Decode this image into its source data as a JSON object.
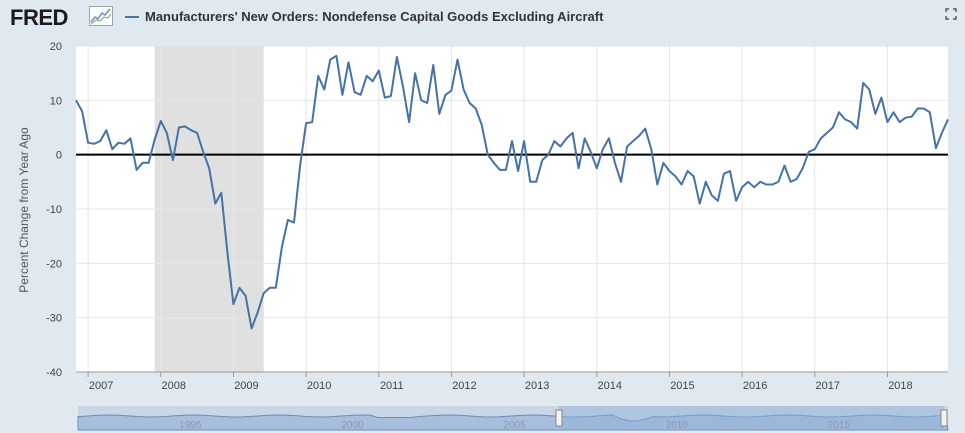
{
  "header": {
    "logo_text": "FRED",
    "title": "Manufacturers' New Orders: Nondefense Capital Goods Excluding Aircraft"
  },
  "colors": {
    "series": "#4572a7",
    "recession": "#e0e0e0",
    "zero_line": "#000000",
    "navigator_fill": "#a7bfdc"
  },
  "navigator": {
    "labels": [
      "1995",
      "2000",
      "2005",
      "2010",
      "2015"
    ]
  },
  "chart_data": {
    "type": "line",
    "ylabel": "Percent Change from Year Ago",
    "ylim": [
      -40,
      20
    ],
    "yticks": [
      20,
      10,
      0,
      -10,
      -20,
      -30,
      -40
    ],
    "x_labels": [
      "2007",
      "2008",
      "2009",
      "2010",
      "2011",
      "2012",
      "2013",
      "2014",
      "2015",
      "2016",
      "2017",
      "2018"
    ],
    "x_range": [
      "2006-11",
      "2018-11"
    ],
    "recession": {
      "start": "2007-12",
      "end": "2009-06"
    },
    "series": [
      {
        "name": "Manufacturers' New Orders: Nondefense Capital Goods Excluding Aircraft",
        "values": [
          [
            "2006-11",
            10.0
          ],
          [
            "2006-12",
            8.0
          ],
          [
            "2007-01",
            2.2
          ],
          [
            "2007-02",
            2.0
          ],
          [
            "2007-03",
            2.5
          ],
          [
            "2007-04",
            4.5
          ],
          [
            "2007-05",
            1.0
          ],
          [
            "2007-06",
            2.2
          ],
          [
            "2007-07",
            2.0
          ],
          [
            "2007-08",
            3.0
          ],
          [
            "2007-09",
            -2.8
          ],
          [
            "2007-10",
            -1.5
          ],
          [
            "2007-11",
            -1.5
          ],
          [
            "2007-12",
            2.8
          ],
          [
            "2008-01",
            6.2
          ],
          [
            "2008-02",
            4.0
          ],
          [
            "2008-03",
            -1.0
          ],
          [
            "2008-04",
            5.0
          ],
          [
            "2008-05",
            5.2
          ],
          [
            "2008-06",
            4.5
          ],
          [
            "2008-07",
            4.0
          ],
          [
            "2008-08",
            0.5
          ],
          [
            "2008-09",
            -2.5
          ],
          [
            "2008-10",
            -9.0
          ],
          [
            "2008-11",
            -7.0
          ],
          [
            "2008-12",
            -18.0
          ],
          [
            "2009-01",
            -27.5
          ],
          [
            "2009-02",
            -24.5
          ],
          [
            "2009-03",
            -26.0
          ],
          [
            "2009-04",
            -32.0
          ],
          [
            "2009-05",
            -29.0
          ],
          [
            "2009-06",
            -25.5
          ],
          [
            "2009-07",
            -24.5
          ],
          [
            "2009-08",
            -24.5
          ],
          [
            "2009-09",
            -17.0
          ],
          [
            "2009-10",
            -12.0
          ],
          [
            "2009-11",
            -12.5
          ],
          [
            "2009-12",
            -2.0
          ],
          [
            "2010-01",
            5.8
          ],
          [
            "2010-02",
            6.0
          ],
          [
            "2010-03",
            14.5
          ],
          [
            "2010-04",
            12.0
          ],
          [
            "2010-05",
            17.5
          ],
          [
            "2010-06",
            18.2
          ],
          [
            "2010-07",
            11.0
          ],
          [
            "2010-08",
            17.0
          ],
          [
            "2010-09",
            11.5
          ],
          [
            "2010-10",
            11.0
          ],
          [
            "2010-11",
            14.5
          ],
          [
            "2010-12",
            13.5
          ],
          [
            "2011-01",
            15.5
          ],
          [
            "2011-02",
            10.5
          ],
          [
            "2011-03",
            10.8
          ],
          [
            "2011-04",
            18.0
          ],
          [
            "2011-05",
            12.5
          ],
          [
            "2011-06",
            6.0
          ],
          [
            "2011-07",
            15.0
          ],
          [
            "2011-08",
            10.0
          ],
          [
            "2011-09",
            9.5
          ],
          [
            "2011-10",
            16.5
          ],
          [
            "2011-11",
            7.5
          ],
          [
            "2011-12",
            11.0
          ],
          [
            "2012-01",
            11.8
          ],
          [
            "2012-02",
            17.5
          ],
          [
            "2012-03",
            12.0
          ],
          [
            "2012-04",
            9.5
          ],
          [
            "2012-05",
            8.5
          ],
          [
            "2012-06",
            5.5
          ],
          [
            "2012-07",
            0.0
          ],
          [
            "2012-08",
            -1.5
          ],
          [
            "2012-09",
            -2.8
          ],
          [
            "2012-10",
            -2.8
          ],
          [
            "2012-11",
            2.5
          ],
          [
            "2012-12",
            -3.0
          ],
          [
            "2013-01",
            2.5
          ],
          [
            "2013-02",
            -5.0
          ],
          [
            "2013-03",
            -5.0
          ],
          [
            "2013-04",
            -1.0
          ],
          [
            "2013-05",
            0.0
          ],
          [
            "2013-06",
            2.5
          ],
          [
            "2013-07",
            1.5
          ],
          [
            "2013-08",
            3.0
          ],
          [
            "2013-09",
            4.0
          ],
          [
            "2013-10",
            -2.5
          ],
          [
            "2013-11",
            3.0
          ],
          [
            "2013-12",
            0.5
          ],
          [
            "2014-01",
            -2.5
          ],
          [
            "2014-02",
            1.0
          ],
          [
            "2014-03",
            3.0
          ],
          [
            "2014-04",
            -1.5
          ],
          [
            "2014-05",
            -5.0
          ],
          [
            "2014-06",
            1.5
          ],
          [
            "2014-07",
            2.5
          ],
          [
            "2014-08",
            3.5
          ],
          [
            "2014-09",
            4.8
          ],
          [
            "2014-10",
            1.0
          ],
          [
            "2014-11",
            -5.5
          ],
          [
            "2014-12",
            -1.5
          ],
          [
            "2015-01",
            -3.0
          ],
          [
            "2015-02",
            -4.0
          ],
          [
            "2015-03",
            -5.5
          ],
          [
            "2015-04",
            -3.0
          ],
          [
            "2015-05",
            -4.0
          ],
          [
            "2015-06",
            -9.0
          ],
          [
            "2015-07",
            -5.0
          ],
          [
            "2015-08",
            -7.5
          ],
          [
            "2015-09",
            -8.5
          ],
          [
            "2015-10",
            -3.5
          ],
          [
            "2015-11",
            -3.0
          ],
          [
            "2015-12",
            -8.5
          ],
          [
            "2016-01",
            -6.0
          ],
          [
            "2016-02",
            -5.0
          ],
          [
            "2016-03",
            -6.0
          ],
          [
            "2016-04",
            -5.0
          ],
          [
            "2016-05",
            -5.5
          ],
          [
            "2016-06",
            -5.5
          ],
          [
            "2016-07",
            -5.0
          ],
          [
            "2016-08",
            -2.0
          ],
          [
            "2016-09",
            -5.0
          ],
          [
            "2016-10",
            -4.5
          ],
          [
            "2016-11",
            -2.5
          ],
          [
            "2016-12",
            0.5
          ],
          [
            "2017-01",
            1.0
          ],
          [
            "2017-02",
            3.0
          ],
          [
            "2017-03",
            4.0
          ],
          [
            "2017-04",
            5.0
          ],
          [
            "2017-05",
            7.8
          ],
          [
            "2017-06",
            6.5
          ],
          [
            "2017-07",
            6.0
          ],
          [
            "2017-08",
            4.8
          ],
          [
            "2017-09",
            13.2
          ],
          [
            "2017-10",
            12.0
          ],
          [
            "2017-11",
            7.5
          ],
          [
            "2017-12",
            10.5
          ],
          [
            "2018-01",
            6.0
          ],
          [
            "2018-02",
            7.8
          ],
          [
            "2018-03",
            6.0
          ],
          [
            "2018-04",
            6.8
          ],
          [
            "2018-05",
            7.0
          ],
          [
            "2018-06",
            8.5
          ],
          [
            "2018-07",
            8.5
          ],
          [
            "2018-08",
            7.8
          ],
          [
            "2018-09",
            1.2
          ],
          [
            "2018-10",
            4.0
          ],
          [
            "2018-11",
            6.5
          ]
        ]
      }
    ]
  }
}
